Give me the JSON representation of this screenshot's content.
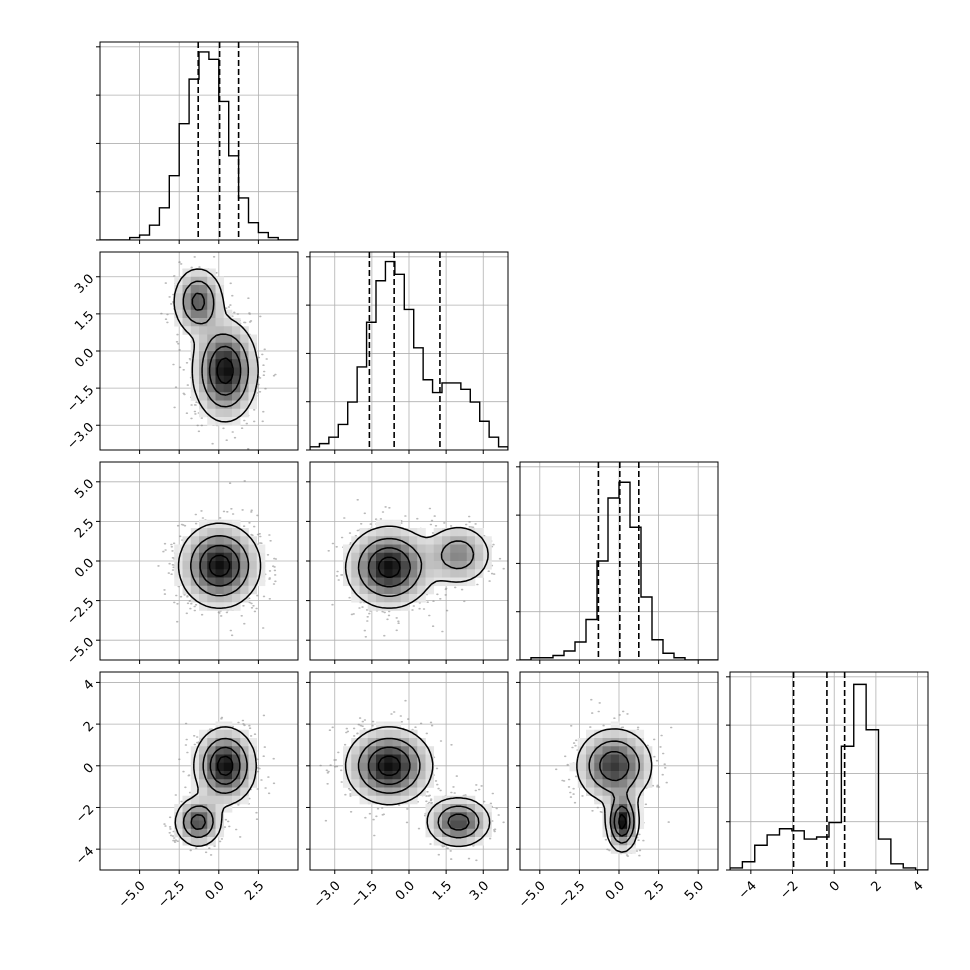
{
  "chart_data": {
    "type": "corner",
    "parameters": 4,
    "histogram_style": "step",
    "show_grid": true,
    "quantile_lines": "dashed",
    "variables": [
      {
        "range": [
          -7.5,
          5.0
        ],
        "ticks": [
          -5.0,
          -2.5,
          0.0,
          2.5
        ],
        "tick_labels": [
          "−5.0",
          "−2.5",
          "0.0",
          "2.5"
        ],
        "quantiles": [
          -1.3,
          0.05,
          1.25
        ],
        "hist_bins": [
          0,
          0,
          0,
          1,
          2,
          6,
          13,
          26,
          47,
          65,
          76,
          73,
          56,
          34,
          17,
          7,
          3,
          1,
          0,
          0
        ],
        "hist_max": 80
      },
      {
        "range": [
          -4.0,
          4.0
        ],
        "ticks": [
          -3.0,
          -1.5,
          0.0,
          1.5,
          3.0
        ],
        "tick_labels": [
          "−3.0",
          "−1.5",
          "0.0",
          "1.5",
          "3.0"
        ],
        "quantiles": [
          -1.6,
          -0.6,
          1.25
        ],
        "hist_bins": [
          1,
          2,
          4,
          8,
          15,
          26,
          40,
          53,
          59,
          55,
          44,
          32,
          22,
          18,
          21,
          21,
          19,
          15,
          9,
          4,
          1
        ],
        "hist_max": 62
      },
      {
        "range": [
          -6.25,
          6.25
        ],
        "ticks": [
          -5.0,
          -2.5,
          0.0,
          2.5,
          5.0
        ],
        "tick_labels": [
          "−5.0",
          "−2.5",
          "0.0",
          "2.5",
          "5.0"
        ],
        "quantiles": [
          -1.3,
          0.05,
          1.25
        ],
        "hist_bins": [
          0,
          1,
          1,
          2,
          4,
          8,
          18,
          44,
          72,
          79,
          59,
          28,
          9,
          3,
          1,
          0,
          0,
          0
        ],
        "hist_max": 88
      },
      {
        "range": [
          -5.0,
          4.5
        ],
        "ticks": [
          -4,
          -2,
          0,
          2,
          4
        ],
        "tick_labels": [
          "−4",
          "−2",
          "0",
          "2",
          "4"
        ],
        "quantiles": [
          -1.95,
          -0.35,
          0.5
        ],
        "hist_bins": [
          1,
          4,
          12,
          17,
          20,
          19,
          15,
          16,
          23,
          60,
          90,
          68,
          15,
          3,
          1,
          0
        ],
        "hist_max": 96
      }
    ],
    "pairs": [
      {
        "row": 1,
        "col": 0,
        "components": [
          {
            "weight": 0.72,
            "mean": [
              0.4,
              -0.8
            ],
            "sd": [
              1.0,
              1.0
            ],
            "rho": 0.0
          },
          {
            "weight": 0.28,
            "mean": [
              -1.3,
              2.0
            ],
            "sd": [
              0.8,
              0.7
            ],
            "rho": 0.0
          }
        ]
      },
      {
        "row": 2,
        "col": 0,
        "components": [
          {
            "weight": 1.0,
            "mean": [
              0.05,
              -0.3
            ],
            "sd": [
              1.25,
              1.3
            ],
            "rho": 0.0
          }
        ]
      },
      {
        "row": 2,
        "col": 1,
        "components": [
          {
            "weight": 0.75,
            "mean": [
              -0.8,
              -0.4
            ],
            "sd": [
              0.85,
              1.25
            ],
            "rho": 0.0
          },
          {
            "weight": 0.25,
            "mean": [
              2.0,
              0.4
            ],
            "sd": [
              0.7,
              1.0
            ],
            "rho": 0.0
          }
        ]
      },
      {
        "row": 3,
        "col": 0,
        "components": [
          {
            "weight": 0.72,
            "mean": [
              0.4,
              0.0
            ],
            "sd": [
              0.95,
              0.9
            ],
            "rho": 0.0
          },
          {
            "weight": 0.28,
            "mean": [
              -1.3,
              -2.7
            ],
            "sd": [
              0.75,
              0.6
            ],
            "rho": 0.0
          }
        ]
      },
      {
        "row": 3,
        "col": 1,
        "components": [
          {
            "weight": 0.72,
            "mean": [
              -0.8,
              0.0
            ],
            "sd": [
              0.85,
              0.9
            ],
            "rho": 0.0
          },
          {
            "weight": 0.28,
            "mean": [
              2.0,
              -2.7
            ],
            "sd": [
              0.65,
              0.6
            ],
            "rho": 0.0
          }
        ]
      },
      {
        "row": 3,
        "col": 2,
        "components": [
          {
            "weight": 0.72,
            "mean": [
              -0.3,
              0.0
            ],
            "sd": [
              1.2,
              0.9
            ],
            "rho": 0.0
          },
          {
            "weight": 0.28,
            "mean": [
              0.2,
              -2.7
            ],
            "sd": [
              0.5,
              0.7
            ],
            "rho": 0.0
          }
        ]
      }
    ],
    "title": "",
    "colors": {
      "line": "#000000",
      "grid": "#b0b0b0",
      "scatter": "#808080",
      "density_max": "#000000"
    }
  }
}
